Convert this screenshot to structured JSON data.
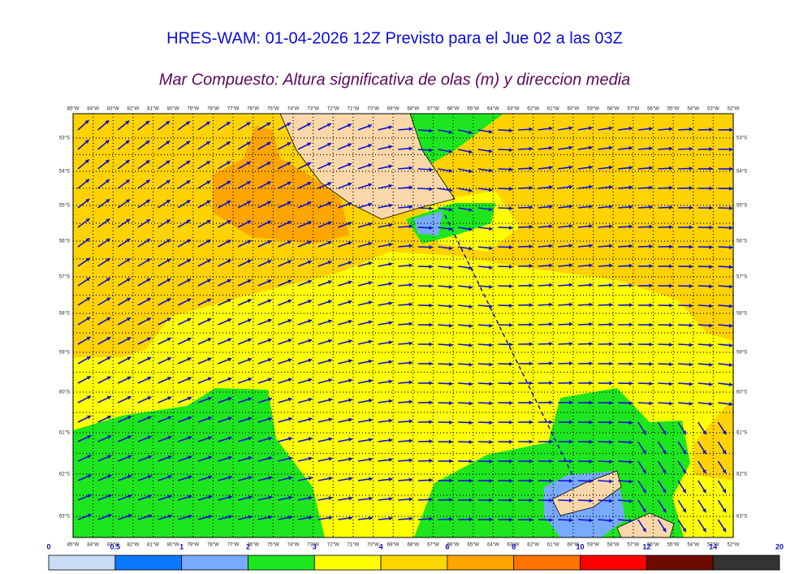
{
  "title": "HRES-WAM: 01-04-2026 12Z Previsto para el Jue 02 a las 03Z",
  "subtitle": "Mar Compuesto: Altura significativa de olas (m) y direccion media",
  "longitudes": [
    "85°W",
    "84°W",
    "83°W",
    "82°W",
    "81°W",
    "80°W",
    "79°W",
    "78°W",
    "77°W",
    "76°W",
    "75°W",
    "74°W",
    "73°W",
    "72°W",
    "71°W",
    "70°W",
    "69°W",
    "68°W",
    "67°W",
    "66°W",
    "65°W",
    "64°W",
    "63°W",
    "62°W",
    "61°W",
    "60°W",
    "59°W",
    "58°W",
    "57°W",
    "56°W",
    "55°W",
    "54°W",
    "53°W",
    "52°W"
  ],
  "latitudes": [
    "53°S",
    "54°S",
    "55°S",
    "56°S",
    "57°S",
    "58°S",
    "59°S",
    "60°S",
    "61°S",
    "62°S",
    "63°S"
  ],
  "colorbar": {
    "ticks": [
      0,
      0.5,
      1,
      2,
      3,
      4,
      6,
      8,
      10,
      12,
      14,
      20
    ],
    "colors": [
      "#c8dcf5",
      "#0a78ff",
      "#78aaff",
      "#1ee61e",
      "#ffff00",
      "#ffd700",
      "#ffa500",
      "#ff7300",
      "#ff0000",
      "#6e0a00",
      "#333333"
    ]
  }
}
